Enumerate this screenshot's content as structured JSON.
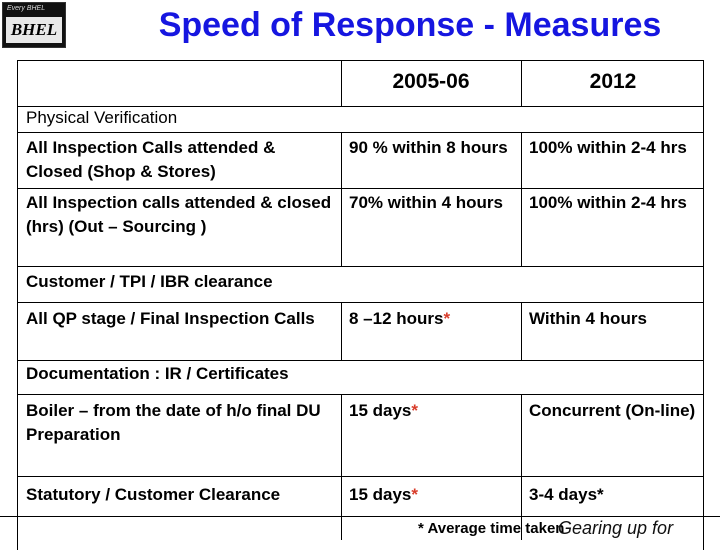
{
  "logo": {
    "tagline": "Every BHEL",
    "mark": "BHEL"
  },
  "title": "Speed of Response - Measures",
  "table": {
    "col_2005": "2005-06",
    "col_2012": "2012",
    "sections": [
      {
        "heading": "Physical Verification",
        "rows": [
          {
            "label": "All Inspection Calls attended & Closed (Shop & Stores)",
            "v2005": "90 % within 8 hours",
            "v2005_star": "",
            "v2012": "100% within 2-4 hrs"
          },
          {
            "label": "All Inspection  calls attended & closed (hrs)       (Out – Sourcing )",
            "v2005": "70% within 4 hours",
            "v2005_star": "",
            "v2012": "100% within 2-4 hrs"
          }
        ]
      },
      {
        "heading": "Customer / TPI / IBR  clearance",
        "rows": [
          {
            "label": "All QP stage / Final  Inspection Calls",
            "v2005": "8 –12 hours",
            "v2005_star": "*",
            "v2012": "Within  4 hours"
          }
        ]
      },
      {
        "heading": "Documentation : IR / Certificates",
        "rows": [
          {
            "label": "Boiler – from the date of h/o final DU Preparation",
            "v2005": "15 days",
            "v2005_star": "*",
            "v2012": "Concurrent (On-line)"
          },
          {
            "label": "Statutory / Customer Clearance",
            "v2005": "15 days",
            "v2005_star": "*",
            "v2012": "3-4 days*"
          }
        ]
      }
    ]
  },
  "footnote": {
    "text": "* Average time taken",
    "overlap": "Gearing up for"
  }
}
